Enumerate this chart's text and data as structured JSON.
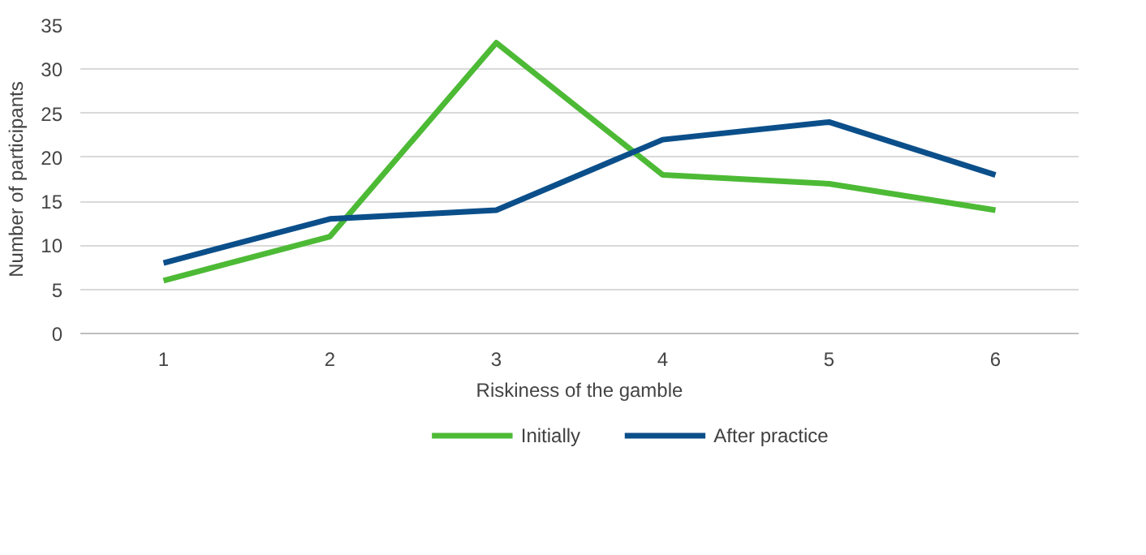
{
  "chart_data": {
    "type": "line",
    "xlabel": "Riskiness of the gamble",
    "ylabel": "Number of participants",
    "categories": [
      "1",
      "2",
      "3",
      "4",
      "5",
      "6"
    ],
    "series": [
      {
        "name": "Initially",
        "color": "#4dba36",
        "values": [
          6,
          11,
          33,
          18,
          17,
          14
        ]
      },
      {
        "name": "After practice",
        "color": "#0b4f8a",
        "values": [
          8,
          13,
          14,
          22,
          24,
          18
        ]
      }
    ],
    "ylim": [
      0,
      35
    ],
    "yticks": [
      0,
      5,
      10,
      15,
      20,
      25,
      30,
      35
    ],
    "grid": "y",
    "legend": "bottom",
    "line_style": "solid",
    "marker": "none"
  }
}
